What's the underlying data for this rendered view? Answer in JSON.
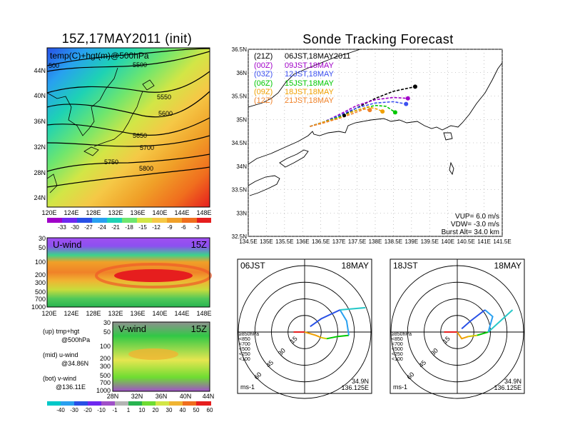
{
  "left_title": "15Z,17MAY2011 (init)",
  "right_title": "Sonde Tracking Forecast",
  "map500": {
    "label": "temp(C)+hgt(m)@500hPa",
    "lat_ticks": [
      "44N",
      "40N",
      "36N",
      "32N",
      "28N",
      "24N"
    ],
    "lon_ticks": [
      "120E",
      "124E",
      "128E",
      "132E",
      "136E",
      "140E",
      "144E",
      "148E"
    ],
    "contours": [
      "5500",
      "5550",
      "5600",
      "5650",
      "5700",
      "5750",
      "5800",
      "500"
    ],
    "colorbar": [
      "-33",
      "-30",
      "-27",
      "-24",
      "-21",
      "-18",
      "-15",
      "-12",
      "-9",
      "-6",
      "-3"
    ]
  },
  "uwind": {
    "label": "U-wind",
    "time": "15Z",
    "p_ticks": [
      "30",
      "50",
      "100",
      "200",
      "300",
      "500",
      "700",
      "1000"
    ],
    "lon_ticks": [
      "120E",
      "124E",
      "128E",
      "132E",
      "136E",
      "140E",
      "144E",
      "148E"
    ]
  },
  "vwind": {
    "label": "V-wind",
    "time": "15Z",
    "p_ticks": [
      "30",
      "50",
      "100",
      "200",
      "300",
      "500",
      "700",
      "1000"
    ],
    "lat_ticks": [
      "28N",
      "32N",
      "36N",
      "40N",
      "44N"
    ],
    "colorbar": [
      "-40",
      "-30",
      "-20",
      "-10",
      "-1",
      "1",
      "10",
      "20",
      "30",
      "40",
      "50",
      "60"
    ]
  },
  "legend_notes": [
    {
      "a": "(up) tmp+hgt",
      "b": "@500hPa"
    },
    {
      "a": "(mid) u-wind",
      "b": "@34.86N"
    },
    {
      "a": "(bot) v-wind",
      "b": "@136.11E"
    }
  ],
  "track": {
    "lat_ticks": [
      "36.5N",
      "36N",
      "35.5N",
      "35N",
      "34.5N",
      "34N",
      "33.5N",
      "33N",
      "32.5N"
    ],
    "lon_ticks": [
      "134.5E",
      "135E",
      "135.5E",
      "136E",
      "136.5E",
      "137E",
      "137.5E",
      "138E",
      "138.5E",
      "139E",
      "139.5E",
      "140E",
      "140.5E",
      "141E",
      "141.5E"
    ],
    "legend": [
      {
        "code": "(21Z)",
        "text": "06JST,18MAY2011",
        "color": "#000000"
      },
      {
        "code": "(00Z)",
        "text": "09JST,18MAY",
        "color": "#a000c8"
      },
      {
        "code": "(03Z)",
        "text": "12JST,18MAY",
        "color": "#3c50f0"
      },
      {
        "code": "(06Z)",
        "text": "15JST,18MAY",
        "color": "#00c800"
      },
      {
        "code": "(09Z)",
        "text": "18JST,18MAY",
        "color": "#f0a000"
      },
      {
        "code": "(12Z)",
        "text": "21JST,18MAY",
        "color": "#f08228"
      }
    ],
    "params": [
      "VUP=  6.0  m/s",
      "VDW= -3.0  m/s",
      "Burst Alt=  34.0  km"
    ]
  },
  "hodo_left": {
    "time": "06JST",
    "date": "18MAY",
    "lat": "34.9N",
    "lon": "136.125E",
    "unit": "ms-1",
    "rings": [
      "15",
      "30",
      "45",
      "60"
    ],
    "levels": [
      "≥850hPa",
      "<850",
      "<700",
      "<500",
      "<250",
      "<100"
    ]
  },
  "hodo_right": {
    "time": "18JST",
    "date": "18MAY",
    "lat": "34.9N",
    "lon": "136.125E",
    "unit": "ms-1",
    "rings": [
      "15",
      "30",
      "45",
      "60"
    ],
    "levels": [
      "≥850hPa",
      "<850",
      "<700",
      "<500",
      "<250",
      "<100"
    ]
  },
  "chart_data": {
    "type": "line",
    "title": "Sonde Tracking Forecast",
    "xlim": [
      134.5,
      141.5
    ],
    "ylim": [
      32.5,
      36.5
    ],
    "launch": {
      "lon": 136.125,
      "lat": 34.9
    },
    "series": [
      {
        "name": "(21Z) 06JST,18MAY2011",
        "color": "#000000",
        "points": [
          [
            136.2,
            34.85
          ],
          [
            136.6,
            34.95
          ],
          [
            137.0,
            35.05
          ],
          [
            137.5,
            35.25
          ],
          [
            138.0,
            35.45
          ],
          [
            138.5,
            35.6
          ],
          [
            139.1,
            35.7
          ]
        ]
      },
      {
        "name": "(00Z) 09JST,18MAY",
        "color": "#a000c8",
        "points": [
          [
            136.2,
            34.85
          ],
          [
            136.6,
            34.95
          ],
          [
            137.0,
            35.1
          ],
          [
            137.5,
            35.3
          ],
          [
            138.0,
            35.42
          ],
          [
            138.5,
            35.47
          ],
          [
            138.9,
            35.45
          ]
        ]
      },
      {
        "name": "(03Z) 12JST,18MAY",
        "color": "#3c50f0",
        "points": [
          [
            136.2,
            34.85
          ],
          [
            136.6,
            34.95
          ],
          [
            137.0,
            35.08
          ],
          [
            137.5,
            35.25
          ],
          [
            138.0,
            35.35
          ],
          [
            138.5,
            35.38
          ],
          [
            138.85,
            35.33
          ]
        ]
      },
      {
        "name": "(06Z) 15JST,18MAY",
        "color": "#00c800",
        "points": [
          [
            136.2,
            34.85
          ],
          [
            136.6,
            34.95
          ],
          [
            137.0,
            35.05
          ],
          [
            137.5,
            35.2
          ],
          [
            138.0,
            35.3
          ],
          [
            138.3,
            35.28
          ],
          [
            138.55,
            35.15
          ]
        ]
      },
      {
        "name": "(09Z) 18JST,18MAY",
        "color": "#f0a000",
        "points": [
          [
            136.2,
            34.85
          ],
          [
            136.6,
            34.95
          ],
          [
            137.0,
            35.03
          ],
          [
            137.4,
            35.17
          ],
          [
            137.8,
            35.27
          ],
          [
            138.05,
            35.22
          ],
          [
            138.2,
            35.17
          ]
        ]
      },
      {
        "name": "(12Z) 21JST,18MAY",
        "color": "#f08228",
        "points": [
          [
            136.2,
            34.85
          ],
          [
            136.6,
            34.93
          ],
          [
            137.0,
            35.02
          ],
          [
            137.4,
            35.13
          ],
          [
            137.7,
            35.22
          ],
          [
            137.85,
            35.2
          ]
        ]
      }
    ]
  }
}
